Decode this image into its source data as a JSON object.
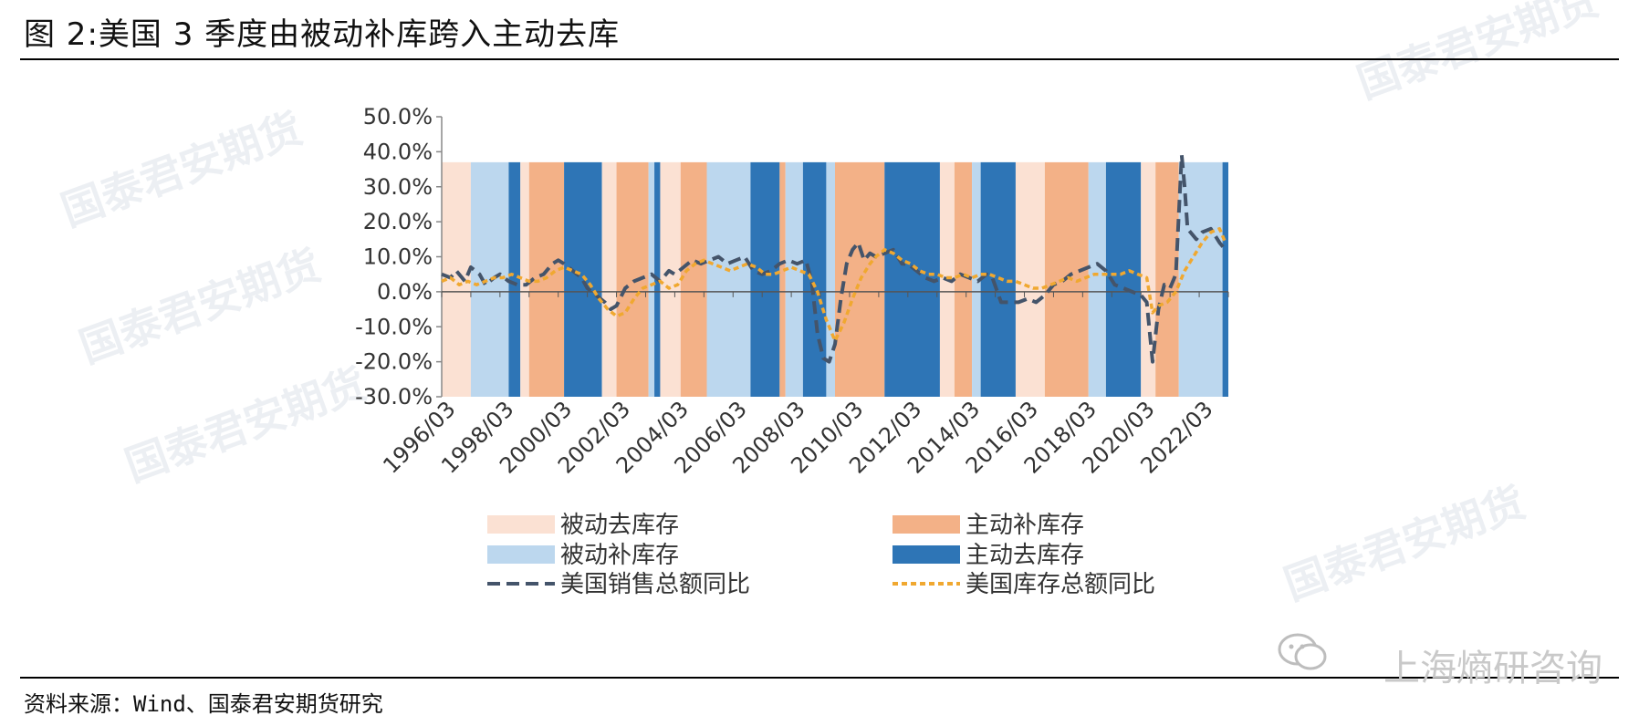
{
  "title": "图 2:美国 3 季度由被动补库跨入主动去库",
  "source": "资料来源：Wind、国泰君安期货研究",
  "watermark": "上海熵研咨询",
  "background_watermark": "国泰君安期货",
  "colors": {
    "passive_destock": "#fbe1d3",
    "active_restock": "#f3b187",
    "passive_restock": "#bcd7ee",
    "active_destock": "#2e75b6",
    "sales": "#44546a",
    "inventory": "#f0a830"
  },
  "chart_data": {
    "type": "line",
    "title": "",
    "xlabel": "",
    "ylabel": "",
    "ylim": [
      -30,
      50
    ],
    "yticks": [
      "50.0%",
      "40.0%",
      "30.0%",
      "20.0%",
      "10.0%",
      "0.0%",
      "-10.0%",
      "-20.0%",
      "-30.0%"
    ],
    "xticks": [
      "1996/03",
      "1998/03",
      "2000/03",
      "2002/03",
      "2004/03",
      "2006/03",
      "2008/03",
      "2010/03",
      "2012/03",
      "2014/03",
      "2016/03",
      "2018/03",
      "2020/03",
      "2022/03"
    ],
    "x_range": [
      1996.0,
      2023.0
    ],
    "phase_band_top": 37,
    "phases": [
      {
        "start": 1996.0,
        "end": 1997.0,
        "type": "passive_destock"
      },
      {
        "start": 1997.0,
        "end": 1998.3,
        "type": "passive_restock"
      },
      {
        "start": 1998.3,
        "end": 1998.7,
        "type": "active_destock"
      },
      {
        "start": 1998.7,
        "end": 1999.0,
        "type": "passive_destock"
      },
      {
        "start": 1999.0,
        "end": 2000.2,
        "type": "active_restock"
      },
      {
        "start": 2000.2,
        "end": 2001.5,
        "type": "active_destock"
      },
      {
        "start": 2001.5,
        "end": 2002.0,
        "type": "passive_destock"
      },
      {
        "start": 2002.0,
        "end": 2003.1,
        "type": "active_restock"
      },
      {
        "start": 2003.1,
        "end": 2003.3,
        "type": "passive_restock"
      },
      {
        "start": 2003.3,
        "end": 2003.5,
        "type": "active_destock"
      },
      {
        "start": 2003.5,
        "end": 2004.2,
        "type": "passive_destock"
      },
      {
        "start": 2004.2,
        "end": 2005.1,
        "type": "active_restock"
      },
      {
        "start": 2005.1,
        "end": 2006.6,
        "type": "passive_restock"
      },
      {
        "start": 2006.6,
        "end": 2007.6,
        "type": "active_destock"
      },
      {
        "start": 2007.6,
        "end": 2007.8,
        "type": "active_restock"
      },
      {
        "start": 2007.8,
        "end": 2008.4,
        "type": "passive_restock"
      },
      {
        "start": 2008.4,
        "end": 2009.2,
        "type": "active_destock"
      },
      {
        "start": 2009.2,
        "end": 2009.5,
        "type": "passive_restock"
      },
      {
        "start": 2009.5,
        "end": 2011.2,
        "type": "active_restock"
      },
      {
        "start": 2011.2,
        "end": 2013.1,
        "type": "active_destock"
      },
      {
        "start": 2013.1,
        "end": 2013.6,
        "type": "passive_destock"
      },
      {
        "start": 2013.6,
        "end": 2014.2,
        "type": "active_restock"
      },
      {
        "start": 2014.2,
        "end": 2014.5,
        "type": "passive_restock"
      },
      {
        "start": 2014.5,
        "end": 2015.7,
        "type": "active_destock"
      },
      {
        "start": 2015.7,
        "end": 2016.7,
        "type": "passive_destock"
      },
      {
        "start": 2016.7,
        "end": 2018.2,
        "type": "active_restock"
      },
      {
        "start": 2018.2,
        "end": 2018.8,
        "type": "passive_restock"
      },
      {
        "start": 2018.8,
        "end": 2020.0,
        "type": "active_destock"
      },
      {
        "start": 2020.0,
        "end": 2020.5,
        "type": "passive_destock"
      },
      {
        "start": 2020.5,
        "end": 2021.3,
        "type": "active_restock"
      },
      {
        "start": 2021.3,
        "end": 2022.8,
        "type": "passive_restock"
      },
      {
        "start": 2022.8,
        "end": 2023.0,
        "type": "active_destock"
      }
    ],
    "series": [
      {
        "name": "美国销售总额同比",
        "key": "sales",
        "points": [
          [
            1996.0,
            5
          ],
          [
            1996.3,
            4
          ],
          [
            1996.5,
            6
          ],
          [
            1996.8,
            3
          ],
          [
            1997.0,
            7
          ],
          [
            1997.3,
            5
          ],
          [
            1997.5,
            2
          ],
          [
            1997.8,
            4
          ],
          [
            1998.0,
            5
          ],
          [
            1998.3,
            3
          ],
          [
            1998.6,
            2
          ],
          [
            1998.9,
            2
          ],
          [
            1999.2,
            4
          ],
          [
            1999.5,
            5
          ],
          [
            1999.8,
            8
          ],
          [
            2000.0,
            9
          ],
          [
            2000.2,
            8
          ],
          [
            2000.5,
            6
          ],
          [
            2000.8,
            4
          ],
          [
            2001.0,
            1
          ],
          [
            2001.3,
            -1
          ],
          [
            2001.6,
            -3
          ],
          [
            2001.8,
            -5
          ],
          [
            2002.0,
            -4
          ],
          [
            2002.3,
            1
          ],
          [
            2002.6,
            3
          ],
          [
            2002.9,
            4
          ],
          [
            2003.2,
            5
          ],
          [
            2003.5,
            3
          ],
          [
            2003.8,
            6
          ],
          [
            2004.0,
            5
          ],
          [
            2004.3,
            7
          ],
          [
            2004.6,
            9
          ],
          [
            2004.9,
            8
          ],
          [
            2005.2,
            9
          ],
          [
            2005.5,
            10
          ],
          [
            2005.8,
            8
          ],
          [
            2006.1,
            9
          ],
          [
            2006.4,
            10
          ],
          [
            2006.7,
            6
          ],
          [
            2007.0,
            5
          ],
          [
            2007.3,
            6
          ],
          [
            2007.6,
            8
          ],
          [
            2007.9,
            9
          ],
          [
            2008.2,
            8
          ],
          [
            2008.5,
            9
          ],
          [
            2008.7,
            3
          ],
          [
            2008.9,
            -12
          ],
          [
            2009.1,
            -19
          ],
          [
            2009.3,
            -20
          ],
          [
            2009.5,
            -15
          ],
          [
            2009.7,
            -2
          ],
          [
            2009.9,
            8
          ],
          [
            2010.1,
            12
          ],
          [
            2010.3,
            14
          ],
          [
            2010.5,
            9
          ],
          [
            2010.7,
            11
          ],
          [
            2010.9,
            10
          ],
          [
            2011.2,
            11
          ],
          [
            2011.5,
            12
          ],
          [
            2011.8,
            8
          ],
          [
            2012.0,
            8
          ],
          [
            2012.3,
            6
          ],
          [
            2012.6,
            4
          ],
          [
            2012.9,
            3
          ],
          [
            2013.2,
            4
          ],
          [
            2013.5,
            3
          ],
          [
            2013.8,
            5
          ],
          [
            2014.1,
            4
          ],
          [
            2014.4,
            3
          ],
          [
            2014.7,
            5
          ],
          [
            2014.9,
            4
          ],
          [
            2015.2,
            -3
          ],
          [
            2015.5,
            -3
          ],
          [
            2015.8,
            -3
          ],
          [
            2016.1,
            -2
          ],
          [
            2016.4,
            -3
          ],
          [
            2016.7,
            -1
          ],
          [
            2017.0,
            2
          ],
          [
            2017.3,
            3
          ],
          [
            2017.6,
            5
          ],
          [
            2017.9,
            6
          ],
          [
            2018.2,
            7
          ],
          [
            2018.5,
            8
          ],
          [
            2018.8,
            6
          ],
          [
            2019.1,
            2
          ],
          [
            2019.4,
            1
          ],
          [
            2019.7,
            0
          ],
          [
            2020.0,
            -1
          ],
          [
            2020.2,
            -3
          ],
          [
            2020.4,
            -20
          ],
          [
            2020.6,
            -5
          ],
          [
            2020.8,
            2
          ],
          [
            2021.0,
            1
          ],
          [
            2021.2,
            5
          ],
          [
            2021.4,
            39
          ],
          [
            2021.5,
            30
          ],
          [
            2021.6,
            18
          ],
          [
            2021.9,
            15
          ],
          [
            2022.1,
            17
          ],
          [
            2022.4,
            18
          ],
          [
            2022.7,
            14
          ],
          [
            2022.9,
            12
          ]
        ]
      },
      {
        "name": "美国库存总额同比",
        "key": "inventory",
        "points": [
          [
            1996.0,
            3
          ],
          [
            1996.3,
            4
          ],
          [
            1996.6,
            2
          ],
          [
            1996.9,
            3
          ],
          [
            1997.2,
            2
          ],
          [
            1997.5,
            3
          ],
          [
            1997.8,
            4
          ],
          [
            1998.1,
            4
          ],
          [
            1998.4,
            5
          ],
          [
            1998.7,
            4
          ],
          [
            1999.0,
            3
          ],
          [
            1999.3,
            3
          ],
          [
            1999.6,
            4
          ],
          [
            1999.9,
            6
          ],
          [
            2000.2,
            7
          ],
          [
            2000.5,
            6
          ],
          [
            2000.8,
            5
          ],
          [
            2001.1,
            2
          ],
          [
            2001.4,
            -2
          ],
          [
            2001.7,
            -5
          ],
          [
            2002.0,
            -7
          ],
          [
            2002.3,
            -6
          ],
          [
            2002.6,
            -2
          ],
          [
            2002.9,
            1
          ],
          [
            2003.2,
            2
          ],
          [
            2003.5,
            3
          ],
          [
            2003.8,
            1
          ],
          [
            2004.1,
            2
          ],
          [
            2004.4,
            6
          ],
          [
            2004.7,
            8
          ],
          [
            2005.0,
            9
          ],
          [
            2005.3,
            8
          ],
          [
            2005.6,
            7
          ],
          [
            2005.9,
            6
          ],
          [
            2006.2,
            7
          ],
          [
            2006.5,
            8
          ],
          [
            2006.8,
            7
          ],
          [
            2007.1,
            5
          ],
          [
            2007.4,
            5
          ],
          [
            2007.7,
            6
          ],
          [
            2008.0,
            7
          ],
          [
            2008.3,
            6
          ],
          [
            2008.6,
            5
          ],
          [
            2008.9,
            0
          ],
          [
            2009.2,
            -8
          ],
          [
            2009.5,
            -14
          ],
          [
            2009.8,
            -9
          ],
          [
            2010.1,
            -2
          ],
          [
            2010.4,
            4
          ],
          [
            2010.7,
            8
          ],
          [
            2010.9,
            10
          ],
          [
            2011.2,
            12
          ],
          [
            2011.5,
            11
          ],
          [
            2011.8,
            9
          ],
          [
            2012.1,
            8
          ],
          [
            2012.4,
            6
          ],
          [
            2012.7,
            5
          ],
          [
            2013.0,
            5
          ],
          [
            2013.3,
            4
          ],
          [
            2013.6,
            4
          ],
          [
            2013.9,
            5
          ],
          [
            2014.2,
            4
          ],
          [
            2014.5,
            5
          ],
          [
            2014.8,
            5
          ],
          [
            2015.1,
            4
          ],
          [
            2015.4,
            3
          ],
          [
            2015.7,
            3
          ],
          [
            2016.0,
            2
          ],
          [
            2016.3,
            1
          ],
          [
            2016.6,
            1
          ],
          [
            2016.9,
            2
          ],
          [
            2017.2,
            3
          ],
          [
            2017.5,
            4
          ],
          [
            2017.8,
            3
          ],
          [
            2018.1,
            4
          ],
          [
            2018.4,
            5
          ],
          [
            2018.7,
            5
          ],
          [
            2019.0,
            5
          ],
          [
            2019.3,
            5
          ],
          [
            2019.6,
            6
          ],
          [
            2019.9,
            5
          ],
          [
            2020.2,
            4
          ],
          [
            2020.4,
            -6
          ],
          [
            2020.6,
            -4
          ],
          [
            2020.9,
            -3
          ],
          [
            2021.2,
            0
          ],
          [
            2021.5,
            6
          ],
          [
            2021.8,
            10
          ],
          [
            2022.1,
            14
          ],
          [
            2022.4,
            17
          ],
          [
            2022.7,
            18
          ],
          [
            2022.9,
            14
          ]
        ]
      }
    ],
    "legend": [
      {
        "label": "被动去库存",
        "kind": "band",
        "key": "passive_destock"
      },
      {
        "label": "主动补库存",
        "kind": "band",
        "key": "active_restock"
      },
      {
        "label": "被动补库存",
        "kind": "band",
        "key": "passive_restock"
      },
      {
        "label": "主动去库存",
        "kind": "band",
        "key": "active_destock"
      },
      {
        "label": "美国销售总额同比",
        "kind": "line",
        "key": "sales"
      },
      {
        "label": "美国库存总额同比",
        "kind": "line",
        "key": "inventory"
      }
    ],
    "grid": false,
    "legend_position": "bottom"
  }
}
